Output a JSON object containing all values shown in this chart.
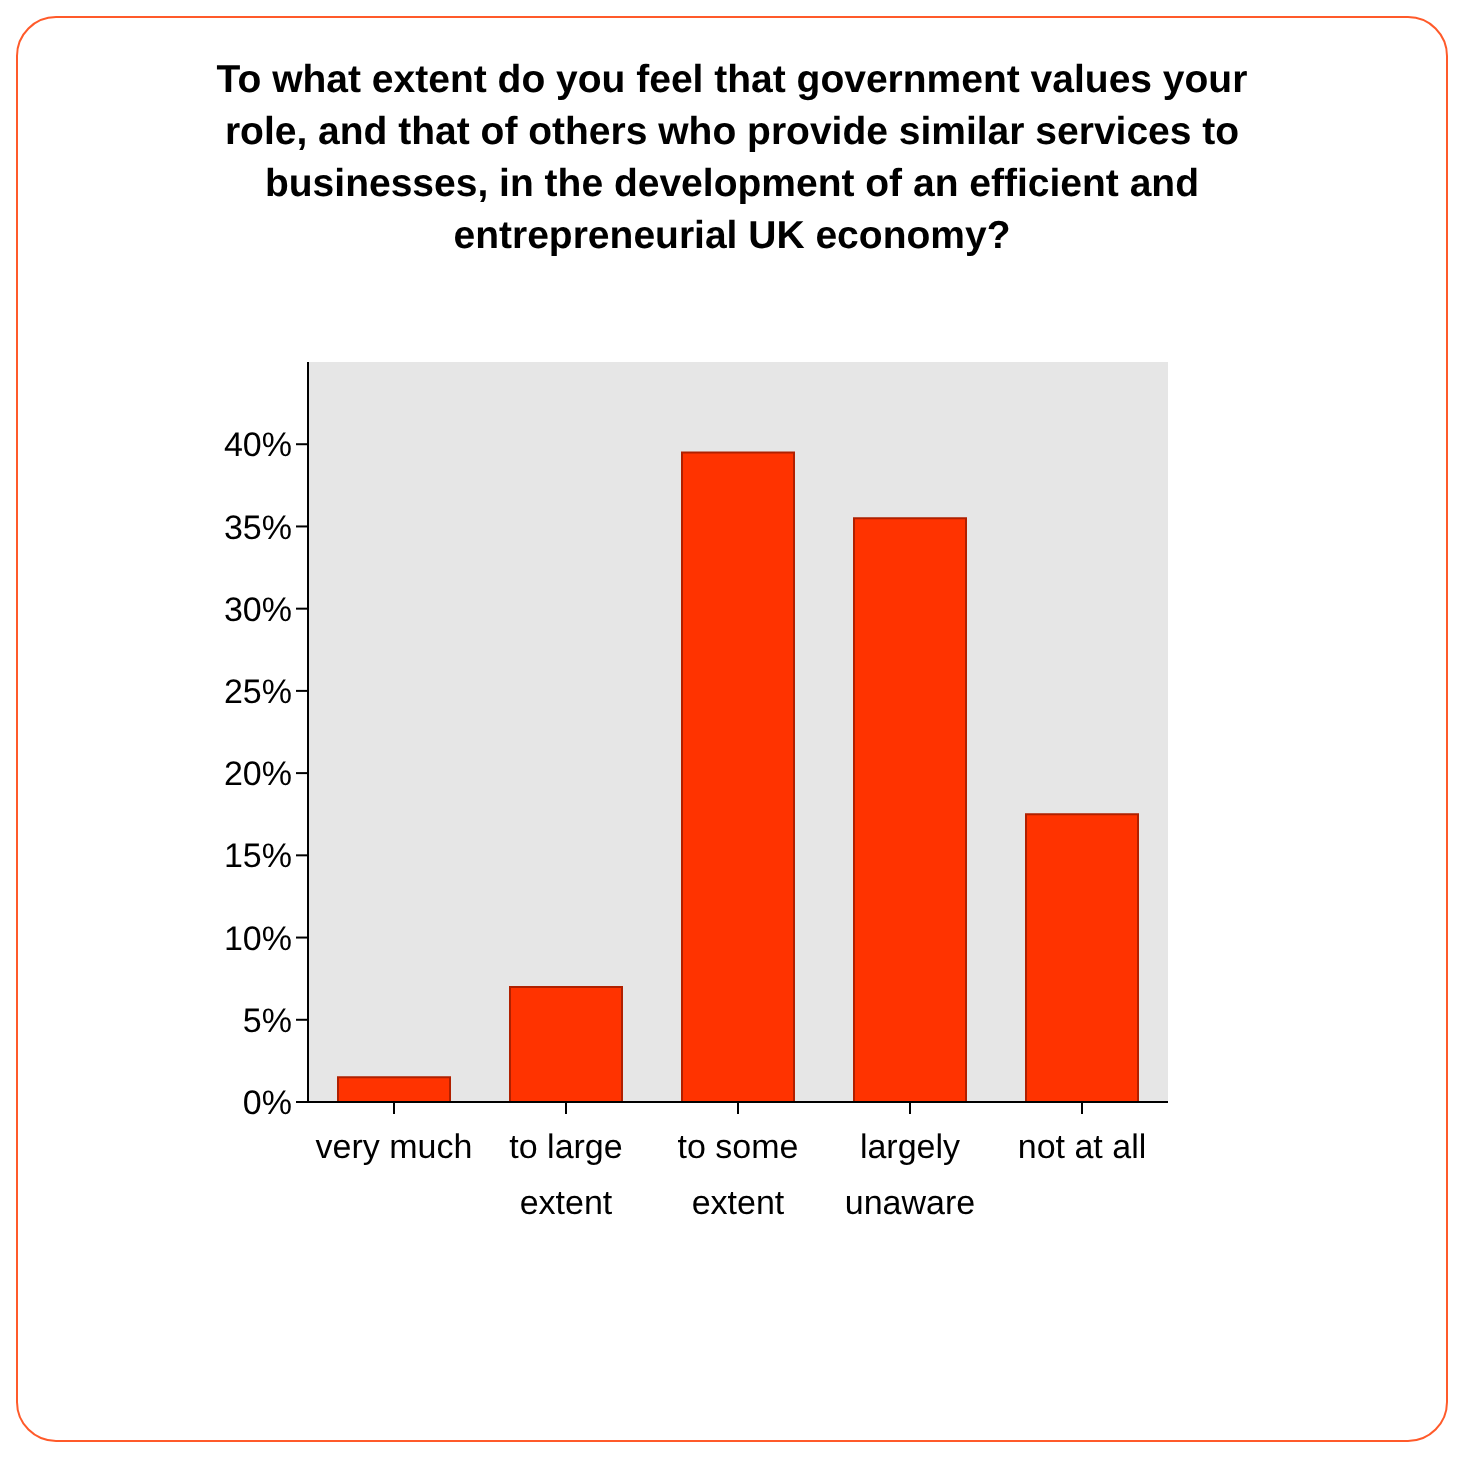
{
  "chart_data": {
    "type": "bar",
    "title": "To what extent do you feel that government values your role, and that of others who provide similar services to businesses, in the development of an efficient and entrepreneurial UK economy?",
    "categories": [
      "very much",
      "to large extent",
      "to some extent",
      "largely unaware",
      "not at all"
    ],
    "values": [
      1.5,
      7,
      39.5,
      35.5,
      17.5
    ],
    "color": "#ff3300",
    "ylim": [
      0,
      45
    ],
    "yticks": [
      {
        "value": 0,
        "label": "0%"
      },
      {
        "value": 5,
        "label": "5%"
      },
      {
        "value": 10,
        "label": "10%"
      },
      {
        "value": 15,
        "label": "15%"
      },
      {
        "value": 20,
        "label": "20%"
      },
      {
        "value": 25,
        "label": "25%"
      },
      {
        "value": 30,
        "label": "30%"
      },
      {
        "value": 35,
        "label": "35%"
      },
      {
        "value": 40,
        "label": "40%"
      }
    ],
    "grid": false,
    "legend": false
  }
}
